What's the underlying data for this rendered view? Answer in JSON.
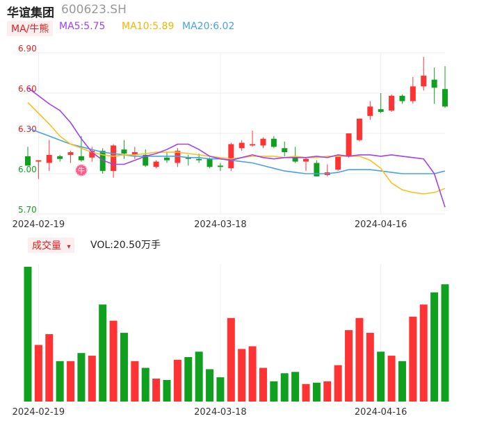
{
  "header": {
    "stock_name": "华谊集团",
    "stock_code": "600623.SH"
  },
  "legend": {
    "ma_toggle": "MA/牛熊",
    "ma5": "MA5:5.75",
    "ma10": "MA10:5.89",
    "ma20": "MA20:6.02"
  },
  "volume_panel": {
    "toggle": "成交量",
    "toggle_caret": "▾",
    "vol_text": "VOL:20.50万手"
  },
  "badge": {
    "text": "牛"
  },
  "colors": {
    "up": "#ff3333",
    "down": "#10a020",
    "ma5": "#a040f0",
    "ma10": "#f8c020",
    "ma20": "#4aa0e8",
    "grid": "#eeeeee",
    "price_label": "#e02020"
  },
  "chart_data": {
    "type": "candlestick",
    "ylim": [
      5.7,
      6.9
    ],
    "yticks": [
      "6.90",
      "6.60",
      "6.30",
      "6.00",
      "5.70"
    ],
    "xticks": [
      {
        "label": "2024-02-19",
        "index": 1
      },
      {
        "label": "2024-03-18",
        "index": 18
      },
      {
        "label": "2024-04-16",
        "index": 33
      }
    ],
    "candles": [
      {
        "o": 6.13,
        "h": 6.2,
        "l": 6.06,
        "c": 6.06
      },
      {
        "o": 6.09,
        "h": 6.1,
        "l": 5.96,
        "c": 6.1
      },
      {
        "o": 6.08,
        "h": 6.25,
        "l": 6.02,
        "c": 6.14
      },
      {
        "o": 6.13,
        "h": 6.14,
        "l": 6.09,
        "c": 6.11
      },
      {
        "o": 6.14,
        "h": 6.17,
        "l": 6.08,
        "c": 6.16
      },
      {
        "o": 6.13,
        "h": 6.28,
        "l": 6.09,
        "c": 6.1
      },
      {
        "o": 6.12,
        "h": 6.2,
        "l": 6.09,
        "c": 6.17
      },
      {
        "o": 6.17,
        "h": 6.19,
        "l": 6.0,
        "c": 6.02
      },
      {
        "o": 6.02,
        "h": 6.22,
        "l": 5.97,
        "c": 6.21
      },
      {
        "o": 6.18,
        "h": 6.25,
        "l": 6.11,
        "c": 6.15
      },
      {
        "o": 6.14,
        "h": 6.2,
        "l": 6.11,
        "c": 6.16
      },
      {
        "o": 6.14,
        "h": 6.18,
        "l": 6.05,
        "c": 6.06
      },
      {
        "o": 6.05,
        "h": 6.1,
        "l": 6.04,
        "c": 6.09
      },
      {
        "o": 6.12,
        "h": 6.16,
        "l": 6.08,
        "c": 6.1
      },
      {
        "o": 6.08,
        "h": 6.19,
        "l": 6.05,
        "c": 6.17
      },
      {
        "o": 6.12,
        "h": 6.14,
        "l": 6.06,
        "c": 6.11
      },
      {
        "o": 6.11,
        "h": 6.15,
        "l": 6.08,
        "c": 6.1
      },
      {
        "o": 6.11,
        "h": 6.12,
        "l": 6.04,
        "c": 6.05
      },
      {
        "o": 6.06,
        "h": 6.08,
        "l": 6.02,
        "c": 6.05
      },
      {
        "o": 6.04,
        "h": 6.23,
        "l": 6.02,
        "c": 6.22
      },
      {
        "o": 6.19,
        "h": 6.25,
        "l": 6.17,
        "c": 6.23
      },
      {
        "o": 6.21,
        "h": 6.32,
        "l": 6.2,
        "c": 6.22
      },
      {
        "o": 6.21,
        "h": 6.27,
        "l": 6.19,
        "c": 6.26
      },
      {
        "o": 6.26,
        "h": 6.28,
        "l": 6.19,
        "c": 6.2
      },
      {
        "o": 6.19,
        "h": 6.24,
        "l": 6.13,
        "c": 6.16
      },
      {
        "o": 6.12,
        "h": 6.2,
        "l": 6.08,
        "c": 6.09
      },
      {
        "o": 6.09,
        "h": 6.12,
        "l": 6.02,
        "c": 6.11
      },
      {
        "o": 6.08,
        "h": 6.1,
        "l": 5.98,
        "c": 5.98
      },
      {
        "o": 5.99,
        "h": 6.07,
        "l": 5.98,
        "c": 6.01
      },
      {
        "o": 6.03,
        "h": 6.14,
        "l": 6.02,
        "c": 6.13
      },
      {
        "o": 6.13,
        "h": 6.3,
        "l": 6.12,
        "c": 6.3
      },
      {
        "o": 6.25,
        "h": 6.41,
        "l": 6.24,
        "c": 6.41
      },
      {
        "o": 6.43,
        "h": 6.54,
        "l": 6.4,
        "c": 6.5
      },
      {
        "o": 6.48,
        "h": 6.6,
        "l": 6.45,
        "c": 6.46
      },
      {
        "o": 6.47,
        "h": 6.59,
        "l": 6.46,
        "c": 6.58
      },
      {
        "o": 6.58,
        "h": 6.59,
        "l": 6.52,
        "c": 6.54
      },
      {
        "o": 6.54,
        "h": 6.72,
        "l": 6.52,
        "c": 6.65
      },
      {
        "o": 6.65,
        "h": 6.87,
        "l": 6.62,
        "c": 6.73
      },
      {
        "o": 6.7,
        "h": 6.79,
        "l": 6.52,
        "c": 6.64
      },
      {
        "o": 6.63,
        "h": 6.8,
        "l": 6.49,
        "c": 6.5
      }
    ],
    "volume_relative": [
      1.0,
      0.42,
      0.5,
      0.3,
      0.3,
      0.36,
      0.34,
      0.72,
      0.6,
      0.51,
      0.3,
      0.25,
      0.17,
      0.16,
      0.31,
      0.33,
      0.37,
      0.24,
      0.18,
      0.62,
      0.39,
      0.41,
      0.25,
      0.15,
      0.21,
      0.22,
      0.13,
      0.14,
      0.15,
      0.27,
      0.53,
      0.62,
      0.51,
      0.37,
      0.34,
      0.3,
      0.63,
      0.72,
      0.81,
      0.87
    ],
    "ma5": [
      6.64,
      6.58,
      6.52,
      6.47,
      6.38,
      6.26,
      6.16,
      6.1,
      6.07,
      6.07,
      6.1,
      6.13,
      6.15,
      6.18,
      6.22,
      6.22,
      6.18,
      6.13,
      6.11,
      6.1,
      6.12,
      6.14,
      6.12,
      6.11,
      6.12,
      6.12,
      6.12,
      6.13,
      6.12,
      6.14,
      6.13,
      6.14,
      6.14,
      6.13,
      6.14,
      6.13,
      6.12,
      6.11,
      6.0,
      5.75
    ],
    "ma10": [
      6.53,
      6.45,
      6.37,
      6.28,
      6.22,
      6.19,
      6.16,
      6.14,
      6.13,
      6.14,
      6.14,
      6.15,
      6.16,
      6.16,
      6.16,
      6.15,
      6.14,
      6.13,
      6.12,
      6.11,
      6.12,
      6.13,
      6.13,
      6.13,
      6.12,
      6.13,
      6.12,
      6.12,
      6.13,
      6.13,
      6.13,
      6.13,
      6.1,
      6.04,
      5.93,
      5.88,
      5.86,
      5.85,
      5.86,
      5.89
    ],
    "ma20": [
      6.34,
      6.31,
      6.28,
      6.25,
      6.22,
      6.2,
      6.18,
      6.16,
      6.15,
      6.14,
      6.13,
      6.13,
      6.13,
      6.13,
      6.13,
      6.12,
      6.12,
      6.11,
      6.11,
      6.1,
      6.09,
      6.08,
      6.06,
      6.04,
      6.02,
      6.01,
      6.0,
      6.0,
      6.0,
      6.01,
      6.03,
      6.03,
      6.03,
      6.02,
      6.01,
      6.0,
      6.0,
      6.0,
      6.0,
      6.02
    ]
  }
}
